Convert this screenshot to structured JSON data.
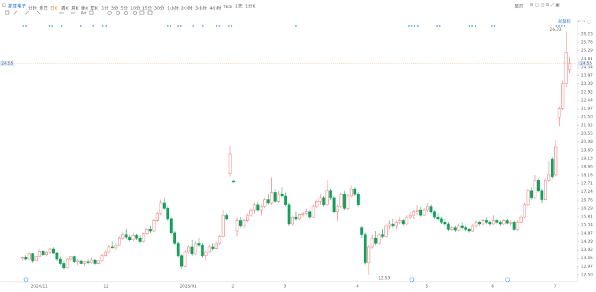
{
  "toolbar": {
    "stock_name": "新亚电子",
    "periods": [
      "分时",
      "多日",
      "日K",
      "周K",
      "月K",
      "季K",
      "年K",
      "1分",
      "3分",
      "5分",
      "10分",
      "15分",
      "30分",
      "1小时",
      "2小时",
      "3小时",
      "4小时",
      "Tick"
    ],
    "range": "1天: 1分K",
    "display": "显示",
    "text_tool": "Aa"
  },
  "chart_data": {
    "type": "candlestick",
    "adjust_label": "前复权",
    "up_color": "#ef7d7d",
    "down_color": "#19a15f",
    "ylim": [
      12.19,
      26.42
    ],
    "yticks": [
      26.23,
      25.76,
      25.29,
      24.81,
      24.34,
      23.87,
      23.39,
      22.92,
      22.44,
      21.97,
      {
        "value": 21.5,
        "label": "21.50"
      },
      21.02,
      20.55,
      20.08,
      {
        "value": 19.6,
        "label": "19.60"
      },
      19.13,
      18.66,
      18.18,
      17.71,
      17.24,
      16.76,
      16.29,
      15.81,
      15.34,
      14.87,
      14.39,
      13.92,
      13.45,
      12.97,
      {
        "value": 12.5,
        "label": "12.50"
      }
    ],
    "current_price": 24.55,
    "max_label": 26.33,
    "min_label": {
      "value": 12.5,
      "label": "12.50"
    },
    "categories": [
      null,
      null,
      null,
      null,
      "2024/11",
      null,
      null,
      null,
      null,
      null,
      null,
      null,
      null,
      null,
      null,
      null,
      null,
      null,
      null,
      null,
      null,
      null,
      null,
      null,
      null,
      "12",
      null,
      null,
      null,
      null,
      null,
      null,
      null,
      null,
      null,
      null,
      null,
      null,
      null,
      null,
      null,
      null,
      null,
      null,
      null,
      null,
      null,
      "2025/01",
      null,
      null,
      null,
      null,
      null,
      null,
      null,
      null,
      null,
      null,
      null,
      null,
      null,
      null,
      "2",
      null,
      null,
      null,
      null,
      null,
      null,
      null,
      null,
      null,
      null,
      null,
      null,
      null,
      null,
      "3",
      null,
      null,
      null,
      null,
      null,
      null,
      null,
      null,
      null,
      null,
      null,
      null,
      null,
      null,
      null,
      null,
      null,
      null,
      null,
      null,
      "4",
      null,
      null,
      null,
      null,
      null,
      null,
      null,
      null,
      null,
      null,
      null,
      null,
      null,
      null,
      null,
      null,
      null,
      null,
      null,
      "5",
      null,
      null,
      null,
      null,
      null,
      null,
      null,
      null,
      null,
      null,
      null,
      null,
      null,
      null,
      null,
      null,
      null,
      null,
      "6",
      null,
      null,
      null,
      null,
      null,
      null,
      null,
      null,
      null,
      null,
      null,
      null,
      null,
      null,
      null,
      null,
      null,
      "7",
      null,
      null,
      null
    ],
    "ohlc": [
      [
        13.42,
        13.55,
        13.3,
        13.5
      ],
      [
        13.5,
        13.62,
        13.35,
        13.4
      ],
      [
        13.4,
        13.8,
        13.38,
        13.72
      ],
      [
        13.72,
        13.75,
        13.2,
        13.3
      ],
      [
        13.3,
        13.6,
        13.25,
        13.55
      ],
      [
        13.55,
        13.95,
        13.5,
        13.85
      ],
      [
        13.85,
        13.9,
        13.6,
        13.65
      ],
      [
        13.65,
        13.85,
        13.55,
        13.78
      ],
      [
        13.78,
        14.05,
        13.7,
        13.98
      ],
      [
        13.98,
        14.1,
        13.7,
        13.75
      ],
      [
        13.75,
        13.8,
        13.3,
        13.4
      ],
      [
        13.4,
        13.55,
        13.05,
        13.15
      ],
      [
        13.15,
        13.3,
        12.8,
        12.9
      ],
      [
        12.9,
        13.45,
        12.88,
        13.4
      ],
      [
        13.4,
        13.6,
        13.3,
        13.55
      ],
      [
        13.55,
        13.6,
        13.2,
        13.25
      ],
      [
        13.25,
        13.4,
        13.05,
        13.3
      ],
      [
        13.3,
        13.35,
        13.1,
        13.15
      ],
      [
        13.15,
        13.3,
        13.0,
        13.25
      ],
      [
        13.25,
        13.4,
        13.1,
        13.2
      ],
      [
        13.2,
        13.5,
        13.15,
        13.35
      ],
      [
        13.35,
        13.4,
        13.05,
        13.15
      ],
      [
        13.15,
        13.35,
        13.1,
        13.3
      ],
      [
        13.3,
        13.7,
        13.25,
        13.6
      ],
      [
        13.6,
        13.9,
        13.55,
        13.8
      ],
      [
        13.8,
        14.2,
        13.75,
        14.1
      ],
      [
        14.1,
        14.4,
        14.0,
        14.05
      ],
      [
        14.05,
        14.3,
        13.9,
        14.2
      ],
      [
        14.2,
        14.7,
        14.15,
        14.6
      ],
      [
        14.6,
        14.95,
        14.5,
        14.8
      ],
      [
        14.8,
        15.1,
        14.55,
        14.65
      ],
      [
        14.65,
        14.8,
        14.4,
        14.5
      ],
      [
        14.5,
        14.9,
        14.45,
        14.75
      ],
      [
        14.75,
        14.85,
        14.5,
        14.6
      ],
      [
        14.6,
        14.75,
        14.3,
        14.4
      ],
      [
        14.4,
        14.9,
        14.35,
        14.85
      ],
      [
        14.85,
        15.2,
        14.8,
        15.1
      ],
      [
        15.1,
        15.3,
        14.9,
        15.0
      ],
      [
        15.0,
        15.7,
        14.95,
        15.6
      ],
      [
        15.6,
        16.1,
        15.5,
        16.0
      ],
      [
        16.0,
        16.8,
        15.9,
        16.6
      ],
      [
        16.6,
        16.9,
        16.2,
        16.3
      ],
      [
        16.3,
        16.4,
        15.6,
        15.7
      ],
      [
        15.7,
        15.8,
        14.8,
        14.9
      ],
      [
        14.9,
        15.0,
        14.2,
        14.3
      ],
      [
        14.3,
        14.4,
        13.5,
        13.6
      ],
      [
        13.6,
        13.7,
        12.85,
        13.0
      ],
      [
        13.0,
        13.9,
        12.95,
        13.8
      ],
      [
        13.8,
        14.2,
        13.7,
        14.1
      ],
      [
        14.1,
        14.5,
        13.6,
        13.7
      ],
      [
        13.7,
        14.4,
        13.65,
        14.3
      ],
      [
        14.3,
        14.6,
        14.1,
        14.2
      ],
      [
        14.2,
        14.3,
        13.5,
        13.6
      ],
      [
        13.6,
        13.9,
        13.3,
        13.8
      ],
      [
        13.8,
        14.2,
        13.75,
        14.1
      ],
      [
        14.1,
        14.3,
        13.9,
        14.0
      ],
      [
        14.0,
        14.4,
        13.95,
        14.3
      ],
      [
        14.3,
        14.8,
        14.2,
        14.7
      ],
      [
        14.7,
        16.2,
        14.65,
        15.9
      ],
      [
        15.9,
        16.0,
        15.6,
        15.7
      ],
      [
        18.3,
        19.85,
        18.1,
        19.4
      ],
      [
        17.85,
        17.9,
        17.8,
        17.8
      ],
      [
        15.0,
        15.8,
        14.7,
        15.6
      ],
      [
        15.6,
        15.8,
        15.2,
        15.3
      ],
      [
        15.3,
        15.7,
        15.2,
        15.6
      ],
      [
        15.6,
        16.0,
        15.5,
        15.9
      ],
      [
        15.9,
        16.3,
        15.8,
        16.2
      ],
      [
        16.2,
        16.6,
        16.0,
        16.5
      ],
      [
        16.5,
        16.7,
        16.1,
        16.2
      ],
      [
        16.2,
        16.5,
        15.9,
        16.4
      ],
      [
        16.4,
        16.9,
        16.3,
        16.8
      ],
      [
        16.8,
        17.1,
        16.5,
        16.6
      ],
      [
        16.6,
        18.05,
        16.5,
        17.2
      ],
      [
        17.2,
        17.4,
        16.6,
        16.7
      ],
      [
        16.7,
        17.3,
        16.6,
        17.1
      ],
      [
        17.1,
        17.5,
        16.9,
        17.0
      ],
      [
        17.0,
        17.2,
        16.4,
        16.5
      ],
      [
        16.5,
        16.6,
        15.3,
        15.4
      ],
      [
        15.4,
        15.9,
        15.3,
        15.8
      ],
      [
        15.8,
        16.1,
        15.6,
        15.7
      ],
      [
        15.7,
        16.0,
        15.6,
        15.95
      ],
      [
        15.95,
        16.1,
        15.8,
        16.0
      ],
      [
        16.0,
        16.3,
        15.9,
        16.1
      ],
      [
        16.1,
        16.2,
        15.7,
        15.8
      ],
      [
        15.8,
        16.5,
        15.75,
        16.4
      ],
      [
        16.4,
        16.8,
        16.3,
        16.7
      ],
      [
        16.7,
        17.1,
        16.5,
        16.9
      ],
      [
        16.9,
        17.0,
        16.4,
        16.5
      ],
      [
        16.5,
        17.9,
        16.45,
        17.3
      ],
      [
        17.3,
        17.4,
        16.8,
        16.9
      ],
      [
        16.9,
        17.0,
        16.0,
        16.1
      ],
      [
        16.1,
        16.5,
        15.6,
        16.4
      ],
      [
        16.4,
        17.2,
        16.3,
        17.1
      ],
      [
        17.1,
        17.3,
        16.2,
        16.3
      ],
      [
        16.3,
        17.1,
        16.2,
        17.0
      ],
      [
        17.0,
        17.6,
        16.9,
        17.4
      ],
      [
        17.4,
        17.5,
        17.0,
        17.1
      ],
      [
        17.1,
        17.2,
        16.4,
        16.5
      ],
      [
        15.2,
        15.3,
        14.6,
        14.8
      ],
      [
        14.8,
        14.9,
        13.1,
        13.2
      ],
      [
        13.2,
        14.2,
        12.5,
        14.1
      ],
      [
        14.1,
        14.8,
        14.0,
        14.6
      ],
      [
        14.6,
        15.0,
        14.2,
        14.3
      ],
      [
        14.3,
        14.9,
        14.25,
        14.8
      ],
      [
        14.8,
        15.1,
        14.6,
        14.7
      ],
      [
        14.7,
        15.4,
        14.65,
        15.3
      ],
      [
        15.3,
        15.6,
        15.1,
        15.4
      ],
      [
        15.4,
        15.7,
        15.2,
        15.3
      ],
      [
        15.3,
        15.6,
        15.1,
        15.5
      ],
      [
        15.5,
        15.8,
        15.4,
        15.6
      ],
      [
        15.6,
        15.7,
        15.3,
        15.4
      ],
      [
        15.4,
        15.9,
        15.35,
        15.8
      ],
      [
        15.8,
        16.1,
        15.7,
        15.9
      ],
      [
        15.9,
        16.2,
        15.7,
        16.1
      ],
      [
        16.1,
        16.5,
        15.9,
        16.2
      ],
      [
        16.2,
        16.4,
        15.8,
        15.9
      ],
      [
        15.9,
        16.3,
        15.85,
        16.2
      ],
      [
        16.2,
        16.6,
        16.1,
        16.4
      ],
      [
        16.4,
        16.5,
        16.0,
        16.1
      ],
      [
        16.1,
        16.2,
        15.7,
        15.8
      ],
      [
        15.8,
        16.0,
        15.6,
        15.7
      ],
      [
        15.7,
        15.8,
        15.4,
        15.5
      ],
      [
        15.5,
        15.7,
        15.3,
        15.4
      ],
      [
        15.4,
        15.5,
        15.0,
        15.1
      ],
      [
        15.1,
        15.3,
        15.0,
        15.2
      ],
      [
        15.2,
        15.3,
        14.95,
        15.05
      ],
      [
        15.05,
        15.4,
        15.0,
        15.3
      ],
      [
        15.3,
        15.5,
        15.1,
        15.2
      ],
      [
        15.2,
        15.3,
        15.0,
        15.1
      ],
      [
        15.1,
        15.2,
        14.9,
        15.0
      ],
      [
        15.0,
        15.4,
        14.95,
        15.3
      ],
      [
        15.3,
        15.6,
        15.2,
        15.5
      ],
      [
        15.5,
        15.6,
        15.3,
        15.4
      ],
      [
        15.4,
        15.7,
        15.35,
        15.6
      ],
      [
        15.6,
        15.8,
        15.4,
        15.5
      ],
      [
        15.5,
        15.6,
        15.3,
        15.4
      ],
      [
        15.4,
        15.9,
        15.35,
        15.6
      ],
      [
        15.6,
        15.7,
        15.4,
        15.5
      ],
      [
        15.5,
        15.6,
        15.3,
        15.4
      ],
      [
        15.4,
        15.7,
        15.35,
        15.6
      ],
      [
        15.6,
        15.7,
        15.4,
        15.45
      ],
      [
        15.45,
        15.6,
        15.3,
        15.5
      ],
      [
        15.5,
        15.6,
        15.0,
        15.1
      ],
      [
        15.1,
        15.6,
        15.05,
        15.5
      ],
      [
        15.5,
        15.9,
        15.45,
        15.8
      ],
      [
        15.8,
        16.6,
        15.75,
        16.5
      ],
      [
        16.5,
        17.4,
        16.4,
        17.3
      ],
      [
        17.3,
        17.5,
        16.8,
        16.9
      ],
      [
        16.9,
        18.2,
        16.85,
        17.9
      ],
      [
        17.9,
        18.0,
        17.2,
        17.3
      ],
      [
        17.3,
        17.4,
        16.6,
        16.8
      ],
      [
        16.8,
        18.0,
        16.75,
        17.9
      ],
      [
        17.9,
        19.0,
        17.8,
        18.2
      ],
      [
        19.1,
        19.2,
        18.0,
        18.1
      ],
      [
        18.2,
        20.2,
        18.1,
        19.8
      ],
      [
        21.5,
        22.1,
        21.0,
        22.0
      ],
      [
        22.0,
        23.6,
        21.9,
        23.4
      ],
      [
        23.4,
        26.33,
        23.2,
        25.2
      ],
      [
        24.2,
        24.9,
        24.0,
        24.55
      ]
    ]
  }
}
